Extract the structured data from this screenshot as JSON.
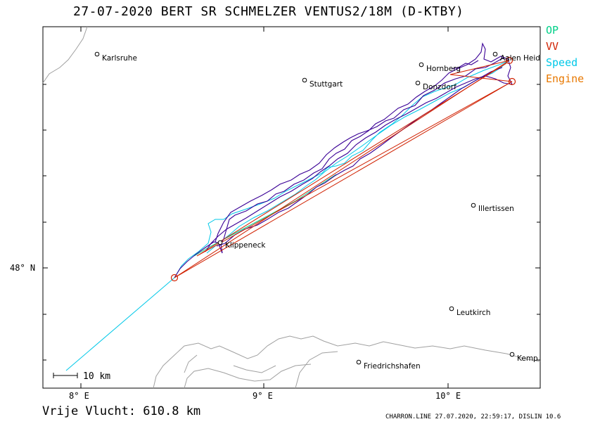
{
  "header": {
    "title": "27-07-2020   BERT SR SCHMELZER   VENTUS2/18M (D-KTBY)"
  },
  "legend": {
    "items": [
      {
        "label": "OP",
        "color": "#00d088"
      },
      {
        "label": "VV",
        "color": "#d02000"
      },
      {
        "label": "Speed",
        "color": "#00c8e8"
      },
      {
        "label": "Engine",
        "color": "#e87800"
      }
    ]
  },
  "map": {
    "x_ticks": [
      "8° E",
      "9° E",
      "10° E"
    ],
    "y_ticks": [
      "48° N"
    ],
    "scale_bar": "10 km",
    "cities": [
      "Karlsruhe",
      "Stuttgart",
      "Hornberg",
      "Aalen Heid",
      "Donzdorf",
      "Illertissen",
      "Klippeneck",
      "Leutkirch",
      "Friedrichshafen",
      "Kemp"
    ]
  },
  "footer": {
    "distance": "Vrije Vlucht:  610.8 km",
    "credit": "CHARRON.LINE 27.07.2020, 22:59:17, DISLIN 10.6"
  },
  "colors": {
    "track_main": "#3a0096",
    "track_speed": "#00c8e8",
    "track_op": "#00d088",
    "task_line": "#d02000",
    "engine": "#e87800",
    "terrain": "#a0a0a0"
  }
}
